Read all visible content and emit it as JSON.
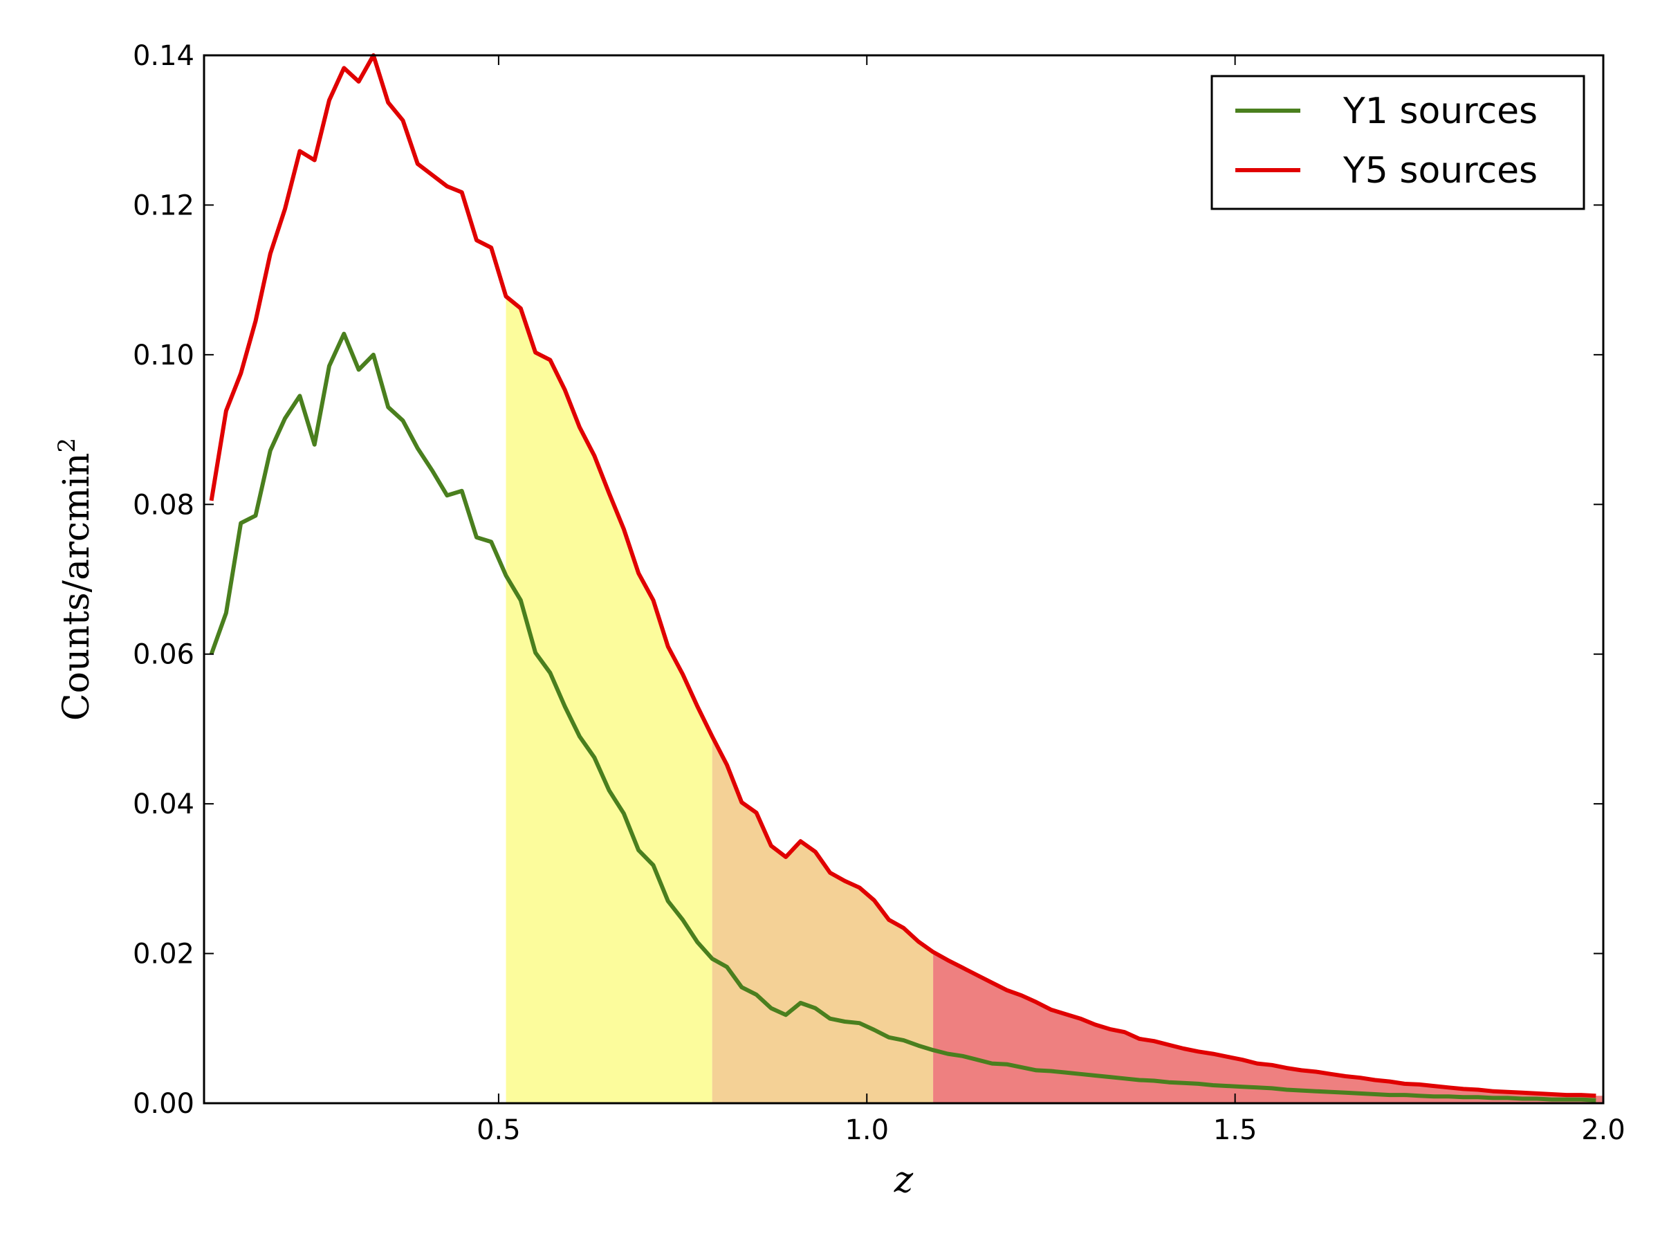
{
  "chart_data": {
    "type": "line",
    "xlabel": "z",
    "ylabel": "Counts/arcmin",
    "ylabel_superscript": "2",
    "xlim": [
      0.1,
      2.0
    ],
    "ylim": [
      0.0,
      0.14
    ],
    "x_ticks": [
      0.5,
      1.0,
      1.5,
      2.0
    ],
    "x_tick_labels": [
      "0.5",
      "1.0",
      "1.5",
      "2.0"
    ],
    "y_ticks": [
      0.0,
      0.02,
      0.04,
      0.06,
      0.08,
      0.1,
      0.12,
      0.14
    ],
    "y_tick_labels": [
      "0.00",
      "0.02",
      "0.04",
      "0.06",
      "0.08",
      "0.10",
      "0.12",
      "0.14"
    ],
    "grid": false,
    "legend_position": "top-right",
    "shaded_bands": [
      {
        "x_start": 0.51,
        "x_end": 0.79,
        "color": "#fcfc9c",
        "under_series": "Y5 sources"
      },
      {
        "x_start": 0.79,
        "x_end": 1.09,
        "color": "#f4d196",
        "under_series": "Y5 sources"
      },
      {
        "x_start": 1.09,
        "x_end": 2.0,
        "color": "#ee8080",
        "under_series": "Y5 sources"
      }
    ],
    "series": [
      {
        "name": "Y1 sources",
        "color": "#4a7f1e",
        "x": [
          0.11,
          0.13,
          0.15,
          0.17,
          0.19,
          0.21,
          0.23,
          0.25,
          0.27,
          0.29,
          0.31,
          0.33,
          0.35,
          0.37,
          0.39,
          0.41,
          0.43,
          0.45,
          0.47,
          0.49,
          0.51,
          0.53,
          0.55,
          0.57,
          0.59,
          0.61,
          0.63,
          0.65,
          0.67,
          0.69,
          0.71,
          0.73,
          0.75,
          0.77,
          0.79,
          0.81,
          0.83,
          0.85,
          0.87,
          0.89,
          0.91,
          0.93,
          0.95,
          0.97,
          0.99,
          1.01,
          1.03,
          1.05,
          1.07,
          1.09,
          1.11,
          1.13,
          1.15,
          1.17,
          1.19,
          1.21,
          1.23,
          1.25,
          1.27,
          1.29,
          1.31,
          1.33,
          1.35,
          1.37,
          1.39,
          1.41,
          1.43,
          1.45,
          1.47,
          1.49,
          1.51,
          1.53,
          1.55,
          1.57,
          1.59,
          1.61,
          1.63,
          1.65,
          1.67,
          1.69,
          1.71,
          1.73,
          1.75,
          1.77,
          1.79,
          1.81,
          1.83,
          1.85,
          1.87,
          1.89,
          1.91,
          1.93,
          1.95,
          1.97,
          1.99
        ],
        "y": [
          0.06,
          0.0655,
          0.0775,
          0.0785,
          0.0872,
          0.0915,
          0.0945,
          0.088,
          0.0985,
          0.1028,
          0.098,
          0.1,
          0.093,
          0.0912,
          0.0875,
          0.0845,
          0.0812,
          0.0818,
          0.0756,
          0.075,
          0.0705,
          0.0672,
          0.0602,
          0.0575,
          0.053,
          0.049,
          0.0462,
          0.0418,
          0.0387,
          0.0338,
          0.0318,
          0.027,
          0.0245,
          0.0215,
          0.0193,
          0.0182,
          0.0155,
          0.0145,
          0.0127,
          0.0118,
          0.0134,
          0.0127,
          0.0113,
          0.0109,
          0.0107,
          0.0098,
          0.0088,
          0.0084,
          0.0077,
          0.0071,
          0.0066,
          0.0063,
          0.0058,
          0.0053,
          0.0052,
          0.0048,
          0.0044,
          0.0043,
          0.0041,
          0.0039,
          0.0037,
          0.0035,
          0.0033,
          0.0031,
          0.003,
          0.0028,
          0.0027,
          0.0026,
          0.0024,
          0.0023,
          0.0022,
          0.0021,
          0.002,
          0.0018,
          0.0017,
          0.0016,
          0.0015,
          0.0014,
          0.0013,
          0.0012,
          0.0011,
          0.0011,
          0.001,
          0.0009,
          0.0009,
          0.0008,
          0.0008,
          0.0007,
          0.0007,
          0.0006,
          0.0006,
          0.0005,
          0.0005,
          0.0005,
          0.0004
        ]
      },
      {
        "name": "Y5 sources",
        "color": "#e00000",
        "x": [
          0.11,
          0.13,
          0.15,
          0.17,
          0.19,
          0.21,
          0.23,
          0.25,
          0.27,
          0.29,
          0.31,
          0.33,
          0.35,
          0.37,
          0.39,
          0.41,
          0.43,
          0.45,
          0.47,
          0.49,
          0.51,
          0.53,
          0.55,
          0.57,
          0.59,
          0.61,
          0.63,
          0.65,
          0.67,
          0.69,
          0.71,
          0.73,
          0.75,
          0.77,
          0.79,
          0.81,
          0.83,
          0.85,
          0.87,
          0.89,
          0.91,
          0.93,
          0.95,
          0.97,
          0.99,
          1.01,
          1.03,
          1.05,
          1.07,
          1.09,
          1.11,
          1.13,
          1.15,
          1.17,
          1.19,
          1.21,
          1.23,
          1.25,
          1.27,
          1.29,
          1.31,
          1.33,
          1.35,
          1.37,
          1.39,
          1.41,
          1.43,
          1.45,
          1.47,
          1.49,
          1.51,
          1.53,
          1.55,
          1.57,
          1.59,
          1.61,
          1.63,
          1.65,
          1.67,
          1.69,
          1.71,
          1.73,
          1.75,
          1.77,
          1.79,
          1.81,
          1.83,
          1.85,
          1.87,
          1.89,
          1.91,
          1.93,
          1.95,
          1.97,
          1.99
        ],
        "y": [
          0.0805,
          0.0925,
          0.0975,
          0.1045,
          0.1135,
          0.1195,
          0.1272,
          0.126,
          0.134,
          0.1383,
          0.1365,
          0.14,
          0.1337,
          0.1313,
          0.1255,
          0.124,
          0.1225,
          0.1217,
          0.1153,
          0.1143,
          0.1078,
          0.1062,
          0.1003,
          0.0993,
          0.0953,
          0.0903,
          0.0865,
          0.0815,
          0.0767,
          0.0708,
          0.0672,
          0.061,
          0.0573,
          0.053,
          0.049,
          0.0452,
          0.0402,
          0.0388,
          0.0344,
          0.0329,
          0.035,
          0.0336,
          0.0308,
          0.0297,
          0.0288,
          0.0271,
          0.0245,
          0.0234,
          0.0216,
          0.0202,
          0.0191,
          0.0181,
          0.0171,
          0.0161,
          0.0151,
          0.0144,
          0.0135,
          0.0125,
          0.0119,
          0.0113,
          0.0105,
          0.0099,
          0.0095,
          0.0086,
          0.0083,
          0.0078,
          0.0073,
          0.0069,
          0.0066,
          0.0062,
          0.0058,
          0.0053,
          0.0051,
          0.0047,
          0.0044,
          0.0042,
          0.0039,
          0.0036,
          0.0034,
          0.0031,
          0.0029,
          0.0026,
          0.0025,
          0.0023,
          0.0021,
          0.0019,
          0.0018,
          0.0016,
          0.0015,
          0.0014,
          0.0013,
          0.0012,
          0.0011,
          0.0011,
          0.001
        ]
      }
    ]
  }
}
